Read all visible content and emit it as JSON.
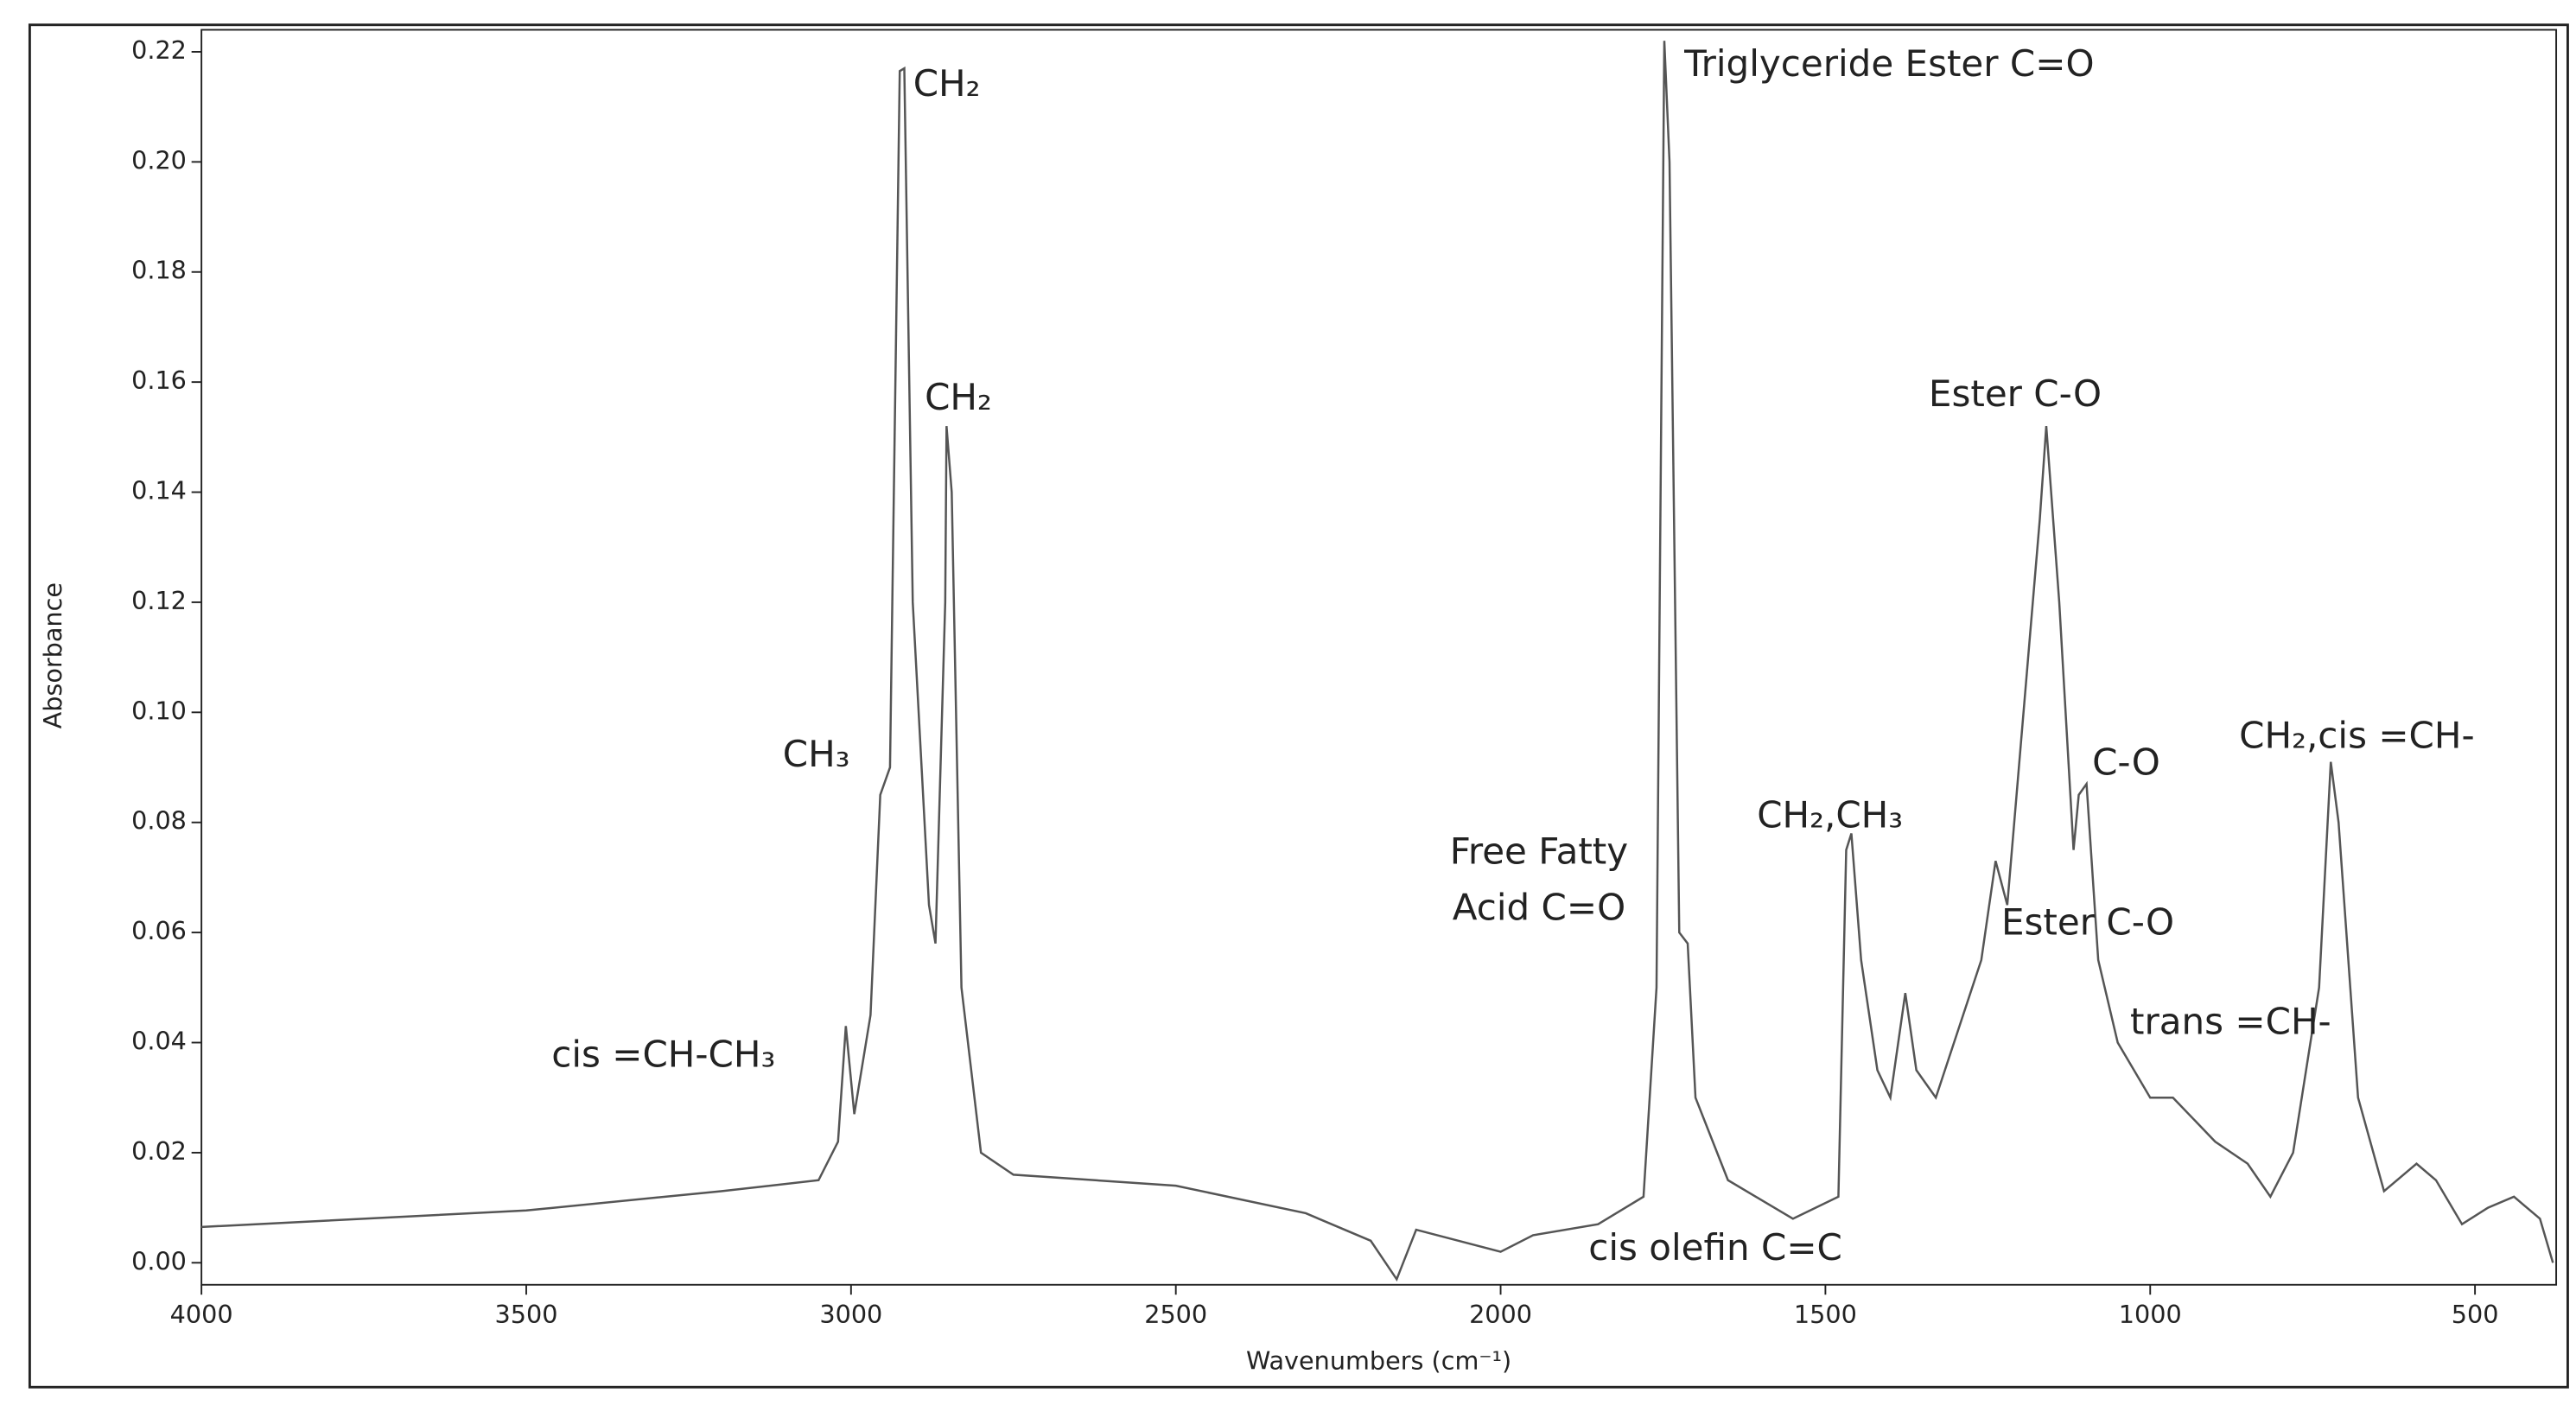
{
  "chart_data": {
    "type": "line",
    "x_label": "Wavenumbers (cm⁻¹)",
    "y_label": "Absorbance",
    "xlim": [
      4000,
      375
    ],
    "ylim": [
      -0.004,
      0.224
    ],
    "xticks": [
      4000,
      3500,
      3000,
      2500,
      2000,
      1500,
      1000,
      500
    ],
    "yticks": [
      {
        "value": 0,
        "label": "0.00"
      },
      0.02,
      0.04,
      0.06,
      0.08,
      {
        "value": 0.1,
        "label": "0.10"
      },
      0.12,
      0.14,
      0.16,
      0.18,
      {
        "value": 0.2,
        "label": "0.20"
      },
      0.22
    ],
    "color": "#555555",
    "x": [
      4000,
      3500,
      3200,
      3050,
      3020,
      3008,
      2995,
      2970,
      2955,
      2940,
      2925,
      2918,
      2905,
      2880,
      2870,
      2855,
      2853,
      2845,
      2830,
      2800,
      2750,
      2500,
      2300,
      2200,
      2160,
      2130,
      2000,
      1950,
      1850,
      1780,
      1760,
      1748,
      1740,
      1725,
      1712,
      1700,
      1650,
      1550,
      1480,
      1468,
      1460,
      1445,
      1420,
      1400,
      1377,
      1360,
      1330,
      1260,
      1238,
      1220,
      1170,
      1160,
      1140,
      1118,
      1110,
      1098,
      1080,
      1050,
      1000,
      965,
      900,
      850,
      815,
      780,
      740,
      722,
      710,
      680,
      640,
      590,
      560,
      520,
      480,
      440,
      400,
      380
    ],
    "values": [
      0.0065,
      0.0095,
      0.013,
      0.015,
      0.022,
      0.043,
      0.027,
      0.045,
      0.085,
      0.09,
      0.2165,
      0.217,
      0.12,
      0.065,
      0.058,
      0.12,
      0.152,
      0.14,
      0.05,
      0.02,
      0.016,
      0.014,
      0.009,
      0.004,
      -0.003,
      0.006,
      0.002,
      0.005,
      0.007,
      0.012,
      0.05,
      0.222,
      0.2,
      0.06,
      0.058,
      0.03,
      0.015,
      0.008,
      0.012,
      0.075,
      0.078,
      0.055,
      0.035,
      0.03,
      0.049,
      0.035,
      0.03,
      0.055,
      0.073,
      0.065,
      0.135,
      0.152,
      0.12,
      0.075,
      0.085,
      0.087,
      0.055,
      0.04,
      0.03,
      0.03,
      0.022,
      0.018,
      0.012,
      0.02,
      0.05,
      0.091,
      0.08,
      0.03,
      0.013,
      0.018,
      0.015,
      0.007,
      0.01,
      0.012,
      0.008,
      0.0
    ],
    "annotations": [
      "CH₂",
      "CH₂",
      "CH₃",
      "cis =CH-CH₃",
      "Triglyceride Ester C=O",
      "Free Fatty",
      "Acid C=O",
      "cis olefin C=C",
      "CH₂,CH₃",
      "Ester C-O",
      "Ester C-O",
      "C-O",
      "trans =CH-",
      "CH₂,cis =CH-"
    ]
  }
}
